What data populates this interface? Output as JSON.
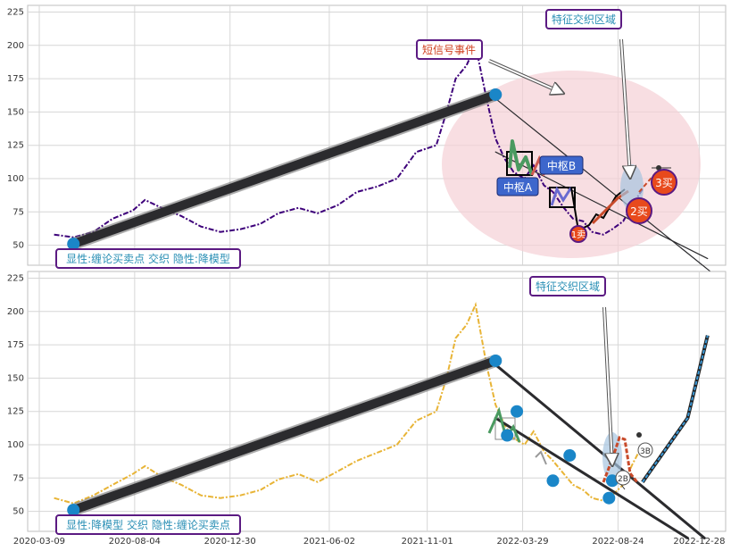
{
  "colors": {
    "panel_bg": "#ffffff",
    "grid": "#d6d6d6",
    "axis_text": "#333333",
    "price_top": "#3d007a",
    "price_bottom": "#e8b436",
    "trend": "#2b2b2e",
    "pivot": "#1a86c8",
    "box_border": "#5b1a82",
    "box_text": "#2a8fb5",
    "zone": "#f5d0d6",
    "hub": "#3d66cc",
    "sell": "#e84a1c",
    "callout_text": "#d04020"
  },
  "chart_data": [
    {
      "type": "line",
      "panel": "top",
      "ylim": [
        35,
        230
      ],
      "yticks": [
        50,
        75,
        100,
        125,
        150,
        175,
        200,
        225
      ],
      "xlim": [
        "2020-02-20",
        "2023-02-07"
      ],
      "series": [
        {
          "style": "dashdot",
          "x": [
            "2020-04-01",
            "2020-05-01",
            "2020-06-01",
            "2020-07-01",
            "2020-08-01",
            "2020-08-20",
            "2020-09-15",
            "2020-10-15",
            "2020-11-15",
            "2020-12-15",
            "2021-01-15",
            "2021-02-15",
            "2021-03-15",
            "2021-04-15",
            "2021-05-15",
            "2021-06-15",
            "2021-07-15",
            "2021-08-15",
            "2021-09-15",
            "2021-10-15",
            "2021-11-15",
            "2021-12-01",
            "2021-12-15",
            "2022-01-01",
            "2022-01-15",
            "2022-02-01",
            "2022-02-15",
            "2022-03-01",
            "2022-03-15",
            "2022-04-01",
            "2022-04-15",
            "2022-05-01",
            "2022-05-15",
            "2022-06-01",
            "2022-06-15",
            "2022-07-01",
            "2022-07-15",
            "2022-08-01",
            "2022-08-15",
            "2022-09-01",
            "2022-09-15",
            "2022-10-01"
          ],
          "y": [
            58,
            56,
            60,
            70,
            76,
            84,
            78,
            72,
            64,
            60,
            62,
            66,
            74,
            78,
            74,
            80,
            90,
            94,
            100,
            120,
            125,
            150,
            175,
            185,
            200,
            160,
            130,
            115,
            105,
            100,
            110,
            95,
            90,
            78,
            70,
            68,
            60,
            58,
            62,
            68,
            80,
            92
          ]
        }
      ],
      "trend_lines": [
        {
          "x1": "2020-05-01",
          "y1": 51,
          "x2": "2022-02-15",
          "y2": 163,
          "weight": "heavy"
        },
        {
          "x1": "2022-02-15",
          "y1": 160,
          "x2": "2023-01-15",
          "y2": 30,
          "weight": "thin"
        },
        {
          "x1": "2022-02-15",
          "y1": 120,
          "x2": "2023-01-10",
          "y2": 40,
          "weight": "thin"
        }
      ],
      "pivots": [
        {
          "x": "2020-05-01",
          "y": 51
        },
        {
          "x": "2022-02-15",
          "y": 163
        }
      ],
      "labels": {
        "box": "显性:缠论买卖点 交织 隐性:降模型",
        "short_signal": "短信号事件",
        "zone": "特征交织区域",
        "hub_a": "中枢A",
        "hub_b": "中枢B",
        "sell_1": "1卖",
        "sell_2": "2买",
        "sell_3": "3买"
      }
    },
    {
      "type": "line",
      "panel": "bottom",
      "ylim": [
        35,
        230
      ],
      "yticks": [
        50,
        75,
        100,
        125,
        150,
        175,
        200,
        225
      ],
      "xlim": [
        "2020-02-20",
        "2023-02-07"
      ],
      "xticks": [
        "2020-03-09",
        "2020-08-04",
        "2020-12-30",
        "2021-06-02",
        "2021-11-01",
        "2022-03-29",
        "2022-08-24",
        "2022-12-28"
      ],
      "series": [
        {
          "style": "dashdot",
          "x": [
            "2020-04-01",
            "2020-05-01",
            "2020-06-01",
            "2020-07-01",
            "2020-08-01",
            "2020-08-20",
            "2020-09-15",
            "2020-10-15",
            "2020-11-15",
            "2020-12-15",
            "2021-01-15",
            "2021-02-15",
            "2021-03-15",
            "2021-04-15",
            "2021-05-15",
            "2021-06-15",
            "2021-07-15",
            "2021-08-15",
            "2021-09-15",
            "2021-10-15",
            "2021-11-15",
            "2021-12-01",
            "2021-12-15",
            "2022-01-01",
            "2022-01-15",
            "2022-02-01",
            "2022-02-15",
            "2022-03-01",
            "2022-03-15",
            "2022-04-01",
            "2022-04-15",
            "2022-05-01",
            "2022-05-15",
            "2022-06-01",
            "2022-06-15",
            "2022-07-01",
            "2022-07-15",
            "2022-08-01",
            "2022-08-15",
            "2022-09-01",
            "2022-09-15",
            "2022-10-01"
          ],
          "y": [
            60,
            56,
            62,
            70,
            78,
            84,
            76,
            70,
            62,
            60,
            62,
            66,
            74,
            78,
            72,
            80,
            88,
            94,
            100,
            118,
            125,
            150,
            180,
            190,
            205,
            160,
            130,
            115,
            105,
            100,
            110,
            95,
            88,
            78,
            70,
            66,
            60,
            58,
            62,
            70,
            85,
            100
          ]
        }
      ],
      "trend_lines": [
        {
          "x1": "2020-05-01",
          "y1": 51,
          "x2": "2022-02-15",
          "y2": 163,
          "weight": "heavy"
        },
        {
          "x1": "2022-02-15",
          "y1": 160,
          "x2": "2023-01-05",
          "y2": 30,
          "weight": "medium"
        },
        {
          "x1": "2022-02-15",
          "y1": 120,
          "x2": "2022-12-10",
          "y2": 30,
          "weight": "medium"
        }
      ],
      "pivots": [
        {
          "x": "2020-05-01",
          "y": 51
        },
        {
          "x": "2022-02-15",
          "y": 163
        },
        {
          "x": "2022-03-05",
          "y": 107
        },
        {
          "x": "2022-03-20",
          "y": 125
        },
        {
          "x": "2022-05-15",
          "y": 73
        },
        {
          "x": "2022-06-10",
          "y": 92
        },
        {
          "x": "2022-08-10",
          "y": 60
        },
        {
          "x": "2022-08-15",
          "y": 73
        }
      ],
      "rally": {
        "x": [
          "2022-10-01",
          "2022-12-10",
          "2023-01-10"
        ],
        "y": [
          72,
          120,
          182
        ]
      },
      "labels": {
        "box": "显性:降模型 交织 隐性:缠论买卖点",
        "zone": "特征交织区域",
        "buy_2": "2B",
        "buy_3": "3B"
      }
    }
  ]
}
